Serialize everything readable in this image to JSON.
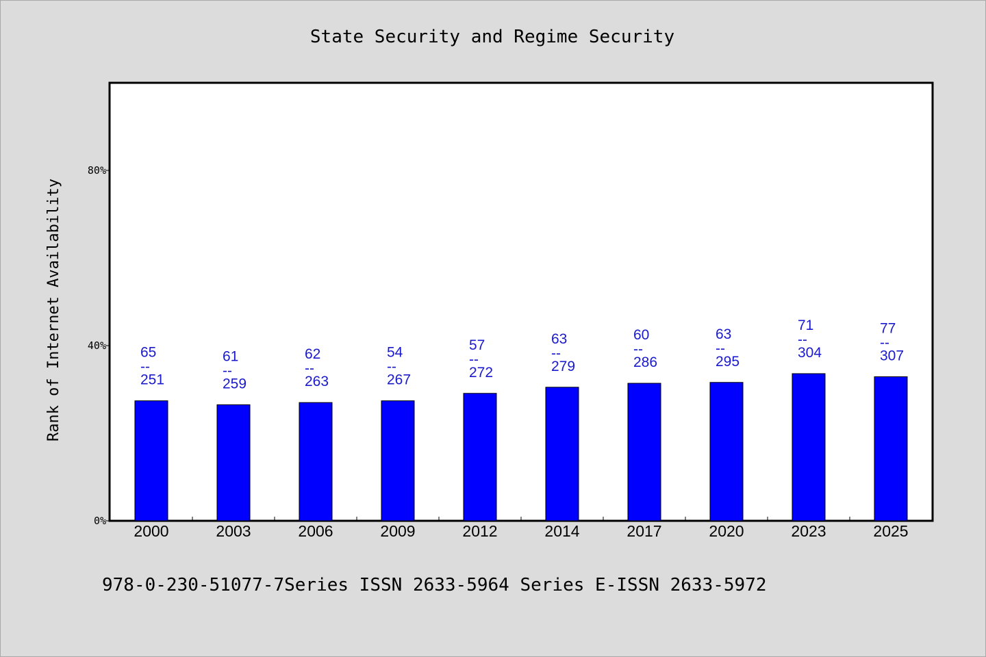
{
  "chart_data": {
    "type": "bar",
    "title": "State Security and Regime Security",
    "xlabel": "",
    "ylabel": "Rank of Internet Availability",
    "categories": [
      "2000",
      "2003",
      "2006",
      "2009",
      "2012",
      "2014",
      "2017",
      "2020",
      "2023",
      "2025"
    ],
    "values": [
      27.4,
      26.5,
      27.0,
      27.4,
      29.1,
      30.5,
      31.4,
      31.6,
      33.6,
      32.9
    ],
    "top_labels": [
      "65",
      "61",
      "62",
      "54",
      "57",
      "63",
      "60",
      "63",
      "71",
      "77"
    ],
    "bottom_labels": [
      "251",
      "259",
      "263",
      "267",
      "272",
      "279",
      "286",
      "295",
      "304",
      "307"
    ],
    "separator": "--",
    "ylim": [
      0,
      100
    ],
    "yticks": [
      0,
      40,
      80
    ],
    "ytick_labels": [
      "0%",
      "40%",
      "80%"
    ],
    "grid": false,
    "bar_color": "#0000ff",
    "label_color": "#1a1acc"
  },
  "footer": {
    "text": "978-0-230-51077-7Series ISSN 2633-5964 Series E-ISSN 2633-5972"
  },
  "colors": {
    "background": "#dcdcdc",
    "plot_background": "#ffffff"
  }
}
